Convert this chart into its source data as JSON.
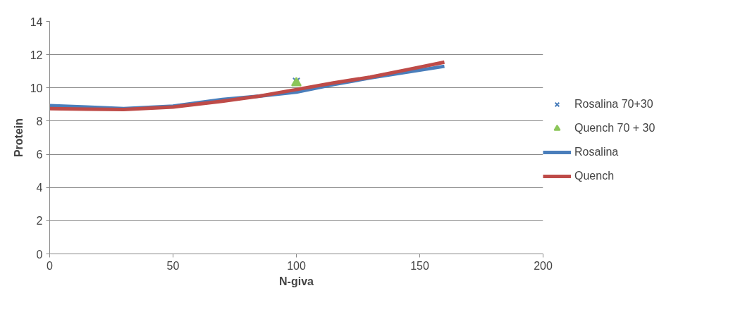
{
  "chart_data": {
    "type": "line",
    "xlabel": "N-giva",
    "ylabel": "Protein",
    "xlim": [
      0,
      200
    ],
    "xticks": [
      0,
      50,
      100,
      150,
      200
    ],
    "ylim": [
      0,
      14
    ],
    "yticks": [
      0,
      2,
      4,
      6,
      8,
      10,
      12,
      14
    ],
    "grid": "y",
    "legend": "right",
    "series": [
      {
        "name": "Rosalina 70+30",
        "type": "scatter",
        "marker": "cross",
        "color": "#4a7ebb",
        "x": [
          100
        ],
        "values": [
          10.4
        ]
      },
      {
        "name": "Quench 70 + 30",
        "type": "scatter",
        "marker": "triangle",
        "color": "#8cc65a",
        "x": [
          100
        ],
        "values": [
          10.3
        ]
      },
      {
        "name": "Rosalina",
        "marker": "none",
        "color": "#4a7ebb",
        "x": [
          0,
          15,
          30,
          50,
          70,
          85,
          100,
          115,
          130,
          145,
          160
        ],
        "values": [
          8.93,
          8.85,
          8.75,
          8.9,
          9.3,
          9.5,
          9.75,
          10.2,
          10.6,
          10.95,
          11.3
        ]
      },
      {
        "name": "Quench",
        "marker": "none",
        "color": "#be4b48",
        "x": [
          0,
          15,
          30,
          50,
          70,
          85,
          100,
          115,
          130,
          145,
          160
        ],
        "values": [
          8.75,
          8.72,
          8.7,
          8.85,
          9.2,
          9.5,
          9.9,
          10.3,
          10.65,
          11.1,
          11.55
        ]
      }
    ]
  }
}
